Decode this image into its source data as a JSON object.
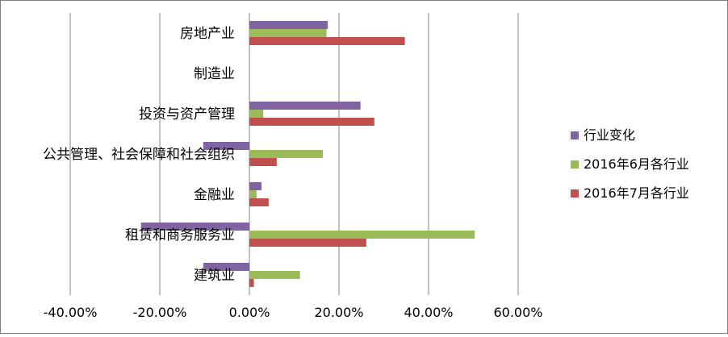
{
  "chart_data": {
    "type": "bar",
    "orientation": "horizontal",
    "categories": [
      "房地产业",
      "制造业",
      "投资与资产管理",
      "公共管理、社会保障和社会组织",
      "金融业",
      "租赁和商务服务业",
      "建筑业"
    ],
    "series": [
      {
        "name": "行业变化",
        "color": "#8064a2",
        "values": [
          17.5,
          0,
          24.8,
          -10.3,
          2.7,
          -24.2,
          -10.3
        ]
      },
      {
        "name": "2016年6月各行业",
        "color": "#9bbb59",
        "values": [
          17.2,
          0,
          3.1,
          16.4,
          1.6,
          50.3,
          11.3
        ]
      },
      {
        "name": "2016年7月各行业",
        "color": "#c0504d",
        "values": [
          34.7,
          0,
          27.9,
          6.1,
          4.3,
          26.1,
          1.0
        ]
      }
    ],
    "xlim": [
      -40,
      60
    ],
    "xticks": [
      -40,
      -20,
      0,
      20,
      40,
      60
    ],
    "xtick_labels": [
      "-40.00%",
      "-20.00%",
      "0.00%",
      "20.00%",
      "40.00%",
      "60.00%"
    ],
    "grid": true,
    "legend_position": "right",
    "title": "",
    "xlabel": "",
    "ylabel": ""
  }
}
